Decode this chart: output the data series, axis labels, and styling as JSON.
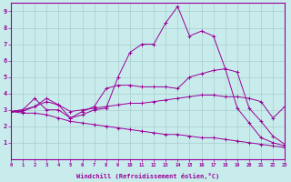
{
  "xlabel": "Windchill (Refroidissement éolien,°C)",
  "background_color": "#c8ecec",
  "line_color": "#990099",
  "grid_color": "#aacccc",
  "x_values": [
    0,
    1,
    2,
    3,
    4,
    5,
    6,
    7,
    8,
    9,
    10,
    11,
    12,
    13,
    14,
    15,
    16,
    17,
    18,
    19,
    20,
    21,
    22,
    23
  ],
  "series1": [
    2.9,
    3.0,
    3.7,
    3.0,
    3.0,
    2.5,
    2.7,
    3.0,
    3.1,
    5.0,
    6.5,
    7.0,
    7.0,
    8.3,
    9.3,
    7.5,
    7.8,
    7.5,
    5.5,
    3.1,
    2.2,
    1.3,
    1.0,
    0.8
  ],
  "series2": [
    2.9,
    3.0,
    3.2,
    3.7,
    3.3,
    2.5,
    2.9,
    3.2,
    4.3,
    4.5,
    4.5,
    4.4,
    4.4,
    4.4,
    4.3,
    5.0,
    5.2,
    5.4,
    5.5,
    5.3,
    3.1,
    2.3,
    1.4,
    0.9
  ],
  "series3": [
    2.9,
    2.9,
    3.2,
    3.5,
    3.3,
    2.9,
    3.0,
    3.1,
    3.2,
    3.3,
    3.4,
    3.4,
    3.5,
    3.6,
    3.7,
    3.8,
    3.9,
    3.9,
    3.8,
    3.8,
    3.7,
    3.5,
    2.5,
    3.2
  ],
  "series4": [
    2.9,
    2.8,
    2.8,
    2.7,
    2.5,
    2.3,
    2.2,
    2.1,
    2.0,
    1.9,
    1.8,
    1.7,
    1.6,
    1.5,
    1.5,
    1.4,
    1.3,
    1.3,
    1.2,
    1.1,
    1.0,
    0.9,
    0.8,
    0.7
  ],
  "xlim": [
    0,
    23
  ],
  "ylim": [
    0,
    9.5
  ],
  "xticks": [
    0,
    1,
    2,
    3,
    4,
    5,
    6,
    7,
    8,
    9,
    10,
    11,
    12,
    13,
    14,
    15,
    16,
    17,
    18,
    19,
    20,
    21,
    22,
    23
  ],
  "yticks": [
    1,
    2,
    3,
    4,
    5,
    6,
    7,
    8,
    9
  ]
}
